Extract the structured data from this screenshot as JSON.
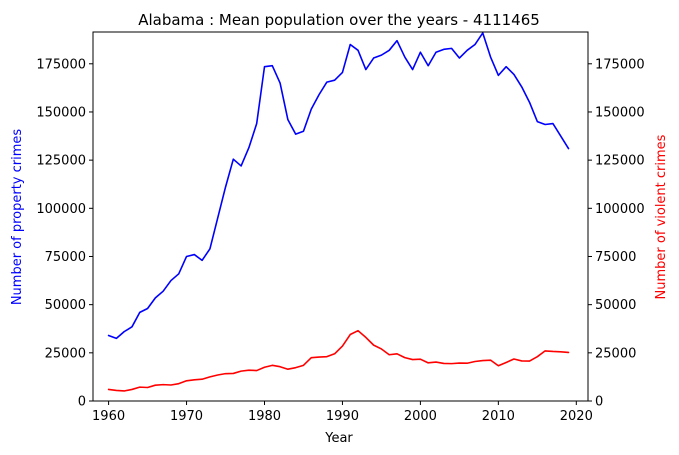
{
  "chart_data": {
    "type": "line",
    "title": "Alabama : Mean population over the years - 4111465",
    "xlabel": "Year",
    "ylabel_left": "Number of property crimes",
    "ylabel_right": "Number of violent crimes",
    "xlim": [
      1958,
      2021.5
    ],
    "ylim": [
      0,
      191500
    ],
    "x_ticks": [
      1960,
      1970,
      1980,
      1990,
      2000,
      2010,
      2020
    ],
    "y_ticks": [
      0,
      25000,
      50000,
      75000,
      100000,
      125000,
      150000,
      175000
    ],
    "grid": false,
    "legend": "none",
    "series": [
      {
        "axis": "left",
        "color": "#0000ff",
        "x": [
          1960,
          1961,
          1962,
          1963,
          1964,
          1965,
          1966,
          1967,
          1968,
          1969,
          1970,
          1971,
          1972,
          1973,
          1974,
          1975,
          1976,
          1977,
          1978,
          1979,
          1980,
          1981,
          1982,
          1983,
          1984,
          1985,
          1986,
          1987,
          1988,
          1989,
          1990,
          1991,
          1992,
          1993,
          1994,
          1995,
          1996,
          1997,
          1998,
          1999,
          2000,
          2001,
          2002,
          2003,
          2004,
          2005,
          2006,
          2007,
          2008,
          2009,
          2010,
          2011,
          2012,
          2013,
          2014,
          2015,
          2016,
          2017,
          2018,
          2019
        ],
        "values": [
          34000,
          32500,
          36000,
          38500,
          46000,
          48000,
          53500,
          57000,
          62500,
          66000,
          75000,
          76000,
          73000,
          79000,
          95000,
          111000,
          125500,
          122000,
          131500,
          144000,
          173500,
          174000,
          165000,
          146000,
          138500,
          140000,
          151500,
          159000,
          165500,
          166500,
          170500,
          185000,
          182000,
          172000,
          178000,
          179500,
          182000,
          187000,
          178500,
          172000,
          181000,
          174000,
          181000,
          182500,
          183000,
          178000,
          182000,
          185000,
          191000,
          178500,
          169000,
          173500,
          169500,
          163000,
          155000,
          145000,
          143500,
          144000,
          137500,
          131000
        ]
      },
      {
        "axis": "right",
        "color": "#ff0000",
        "x": [
          1960,
          1961,
          1962,
          1963,
          1964,
          1965,
          1966,
          1967,
          1968,
          1969,
          1970,
          1971,
          1972,
          1973,
          1974,
          1975,
          1976,
          1977,
          1978,
          1979,
          1980,
          1981,
          1982,
          1983,
          1984,
          1985,
          1986,
          1987,
          1988,
          1989,
          1990,
          1991,
          1992,
          1993,
          1994,
          1995,
          1996,
          1997,
          1998,
          1999,
          2000,
          2001,
          2002,
          2003,
          2004,
          2005,
          2006,
          2007,
          2008,
          2009,
          2010,
          2011,
          2012,
          2013,
          2014,
          2015,
          2016,
          2017,
          2018,
          2019
        ],
        "values": [
          6000,
          5500,
          5200,
          6000,
          7200,
          7000,
          8200,
          8500,
          8300,
          9000,
          10500,
          11000,
          11300,
          12500,
          13500,
          14200,
          14300,
          15500,
          16000,
          15800,
          17500,
          18500,
          17800,
          16500,
          17300,
          18500,
          22500,
          22800,
          23000,
          24500,
          28500,
          34500,
          36500,
          33000,
          29000,
          27000,
          24000,
          24500,
          22500,
          21500,
          21700,
          19800,
          20200,
          19500,
          19400,
          19700,
          19600,
          20500,
          21000,
          21200,
          18300,
          20000,
          21800,
          20800,
          20700,
          23000,
          26000,
          25700,
          25500,
          25200
        ]
      }
    ]
  }
}
